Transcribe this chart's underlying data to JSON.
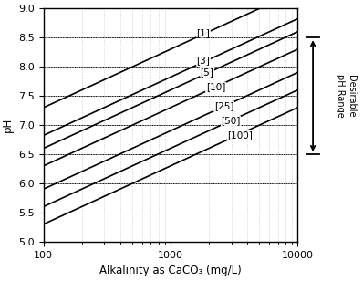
{
  "co2_levels": [
    1,
    3,
    5,
    10,
    25,
    50,
    100
  ],
  "x_min": 100,
  "x_max": 10000,
  "y_min": 5.0,
  "y_max": 9.0,
  "xlabel": "Alkalinity as CaCO₃ (mg/L)",
  "ylabel": "pH",
  "desirable_ph_low": 6.5,
  "desirable_ph_high": 8.5,
  "desirable_line1": "Desirable",
  "desirable_line2": "pH Range",
  "C_constant": 5.3,
  "line_color": "#000000",
  "bg_color": "#ffffff",
  "major_grid_color": "#888888",
  "minor_grid_color": "#bbbbbb",
  "dotted_ph_lines": [
    5.5,
    6.0,
    6.5,
    7.0,
    7.5,
    8.0,
    8.5
  ],
  "axis_fontsize": 8.5,
  "tick_fontsize": 8,
  "label_fontsize": 7.5,
  "label_x_positions": [
    1600,
    1600,
    1700,
    1900,
    2200,
    2500,
    2800
  ]
}
